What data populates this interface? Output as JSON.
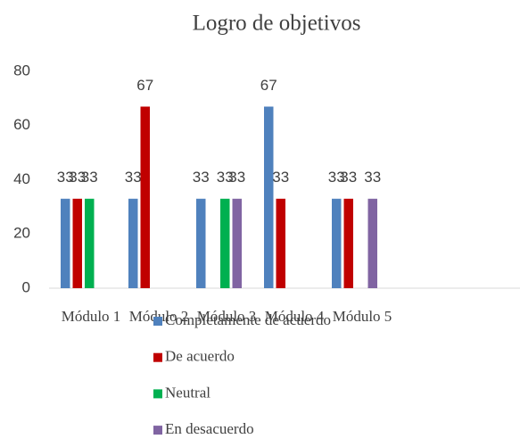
{
  "chart_data": {
    "type": "bar",
    "title": "Logro de objetivos",
    "categories": [
      "Módulo 1",
      "Módulo 2",
      "Módulo 3",
      "Módulo 4",
      "Módulo 5"
    ],
    "series": [
      {
        "name": "Completamente de acuerdo",
        "color": "#4f81bd",
        "values": [
          33,
          33,
          33,
          67,
          33
        ]
      },
      {
        "name": "De acuerdo",
        "color": "#c00000",
        "values": [
          33,
          67,
          null,
          33,
          33
        ]
      },
      {
        "name": "Neutral",
        "color": "#00b050",
        "values": [
          33,
          null,
          33,
          null,
          null
        ]
      },
      {
        "name": "En desacuerdo",
        "color": "#8064a2",
        "values": [
          null,
          null,
          33,
          null,
          33
        ]
      }
    ],
    "ylim": [
      0,
      80
    ],
    "yticks": [
      0,
      20,
      40,
      60,
      80
    ],
    "grid": false,
    "legend": "bottom"
  }
}
